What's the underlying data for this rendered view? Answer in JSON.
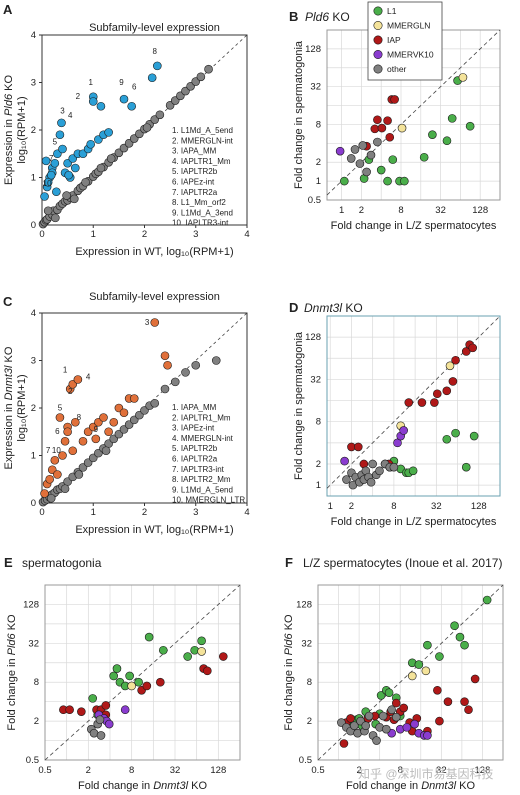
{
  "panels": {
    "A": {
      "label": "A",
      "title": "Subfamily-level expression",
      "ylabel": {
        "pre": "Expression in ",
        "ko": "Pld6",
        "post": " KO",
        "line2": "log₁₀(RPM+1)"
      },
      "xlabel": "Expression in WT,  log₁₀(RPM+1)",
      "ticks": [
        "0",
        "1",
        "2",
        "3",
        "4"
      ],
      "legend": [
        "1. L1Md_A_5end",
        "2. MMERGLN-int",
        "3. IAPA_MM",
        "4. IAPLTR1_Mm",
        "5. IAPLTR2b",
        "6. IAPEz-int",
        "7. IAPLTR2a",
        "8. L1_Mm_orf2",
        "9. L1Md_A_3end",
        "10. IAPLTR3-int"
      ]
    },
    "B": {
      "label": "B",
      "title_ko": "Pld6",
      "title_post": " KO",
      "xlabel": "Fold change in L/Z spermatocytes",
      "ylabel": "Fold change in spermatogonia",
      "xticks": [
        "1",
        "2",
        "8",
        "32",
        "128"
      ],
      "yticks": [
        "0.5",
        "1",
        "2",
        "8",
        "32",
        "128"
      ]
    },
    "C": {
      "label": "C",
      "title": "Subfamily-level expression",
      "ylabel": {
        "pre": "Expression in ",
        "ko": "Dnmt3l",
        "post": " KO",
        "line2": "log₁₀(RPM+1)"
      },
      "xlabel": "Expression in WT,  log₁₀(RPM+1)",
      "ticks": [
        "0",
        "1",
        "2",
        "3",
        "4"
      ],
      "legend": [
        "1. IAPA_MM",
        "2. IAPLTR1_Mm",
        "3. IAPEz-int",
        "4. MMERGLN-int",
        "5. IAPLTR2b",
        "6. IAPLTR2a",
        "7. IAPLTR3-int",
        "8. IAPLTR2_Mm",
        "9. L1Md_A_5end",
        "10. MMERGLN_LTR"
      ]
    },
    "D": {
      "label": "D",
      "title_ko": "Dnmt3l",
      "title_post": "  KO",
      "xlabel": "Fold change in L/Z spermatocytes",
      "ylabel": "Fold change in spermatogonia",
      "xticks": [
        "1",
        "2",
        "8",
        "32",
        "128"
      ],
      "yticks": [
        "1",
        "2",
        "8",
        "32",
        "128"
      ]
    },
    "E": {
      "label": "E",
      "title": "spermatogonia",
      "xlabel": {
        "pre": "Fold change in ",
        "ko": "Dnmt3l",
        "post": " KO"
      },
      "ylabel": {
        "pre": "Fold change in ",
        "ko": "Pld6",
        "post": " KO"
      },
      "xticks": [
        "0.5",
        "2",
        "8",
        "32",
        "128"
      ],
      "yticks": [
        "0.5",
        "2",
        "8",
        "32",
        "128"
      ]
    },
    "F": {
      "label": "F",
      "title": "L/Z spermatocytes (Inoue et al. 2017)",
      "xlabel": {
        "pre": "Fold change in ",
        "ko": "Dnmt3l",
        "post": " KO"
      },
      "ylabel": {
        "pre": "Fold change in ",
        "ko": "Pld6",
        "post": " KO"
      },
      "xticks": [
        "0.5",
        "2",
        "8",
        "32",
        "128"
      ],
      "yticks": [
        "0.5",
        "2",
        "8",
        "32",
        "128"
      ]
    }
  },
  "legend_groups": [
    {
      "name": "L1",
      "color": "#4aae4a"
    },
    {
      "name": "MMERGLN",
      "color": "#f4e39a"
    },
    {
      "name": "IAP",
      "color": "#b01818"
    },
    {
      "name": "MMERVK10",
      "color": "#8a3ccf"
    },
    {
      "name": "other",
      "color": "#808080"
    }
  ],
  "watermark": "知乎 @深圳市易基因科技",
  "chart_data": [
    {
      "panel": "A",
      "type": "scatter",
      "xlim": [
        0,
        4
      ],
      "ylim": [
        0,
        4
      ],
      "series": [
        {
          "color": "#2a9fd6",
          "x": [
            0.05,
            0.1,
            0.15,
            0.2,
            0.12,
            0.25,
            0.3,
            0.35,
            0.4,
            0.2,
            0.28,
            0.5,
            0.45,
            0.6,
            0.7,
            0.55,
            0.65,
            0.8,
            0.9,
            1.0,
            0.95,
            1.1,
            1.2,
            1.3,
            1.15,
            1.6,
            1.75,
            2.15,
            2.25,
            0.08,
            0.18,
            0.38,
            0.52,
            1.0
          ],
          "y": [
            0.6,
            0.8,
            1.0,
            1.2,
            0.9,
            1.3,
            1.5,
            1.9,
            1.6,
            1.1,
            0.7,
            1.3,
            1.1,
            1.4,
            1.5,
            1.0,
            1.2,
            1.5,
            1.6,
            2.7,
            1.7,
            1.8,
            1.9,
            1.95,
            2.5,
            2.65,
            2.5,
            3.1,
            3.35,
            1.35,
            1.05,
            2.15,
            1.05,
            2.6
          ]
        },
        {
          "color": "#808080",
          "x": [
            0.02,
            0.05,
            0.08,
            0.1,
            0.15,
            0.2,
            0.22,
            0.3,
            0.35,
            0.4,
            0.45,
            0.5,
            0.55,
            0.6,
            0.7,
            0.75,
            0.8,
            0.9,
            1.0,
            1.05,
            1.1,
            1.2,
            1.3,
            1.4,
            1.5,
            1.6,
            1.7,
            1.8,
            1.9,
            2.0,
            2.1,
            2.2,
            2.3,
            2.5,
            2.6,
            2.7,
            2.8,
            2.9,
            3.0,
            3.1,
            3.25,
            0.12,
            0.26,
            0.48,
            0.63,
            0.85,
            1.15,
            1.35,
            2.05
          ],
          "y": [
            0.02,
            0.06,
            0.1,
            0.12,
            0.18,
            0.22,
            0.3,
            0.32,
            0.4,
            0.45,
            0.5,
            0.52,
            0.58,
            0.62,
            0.72,
            0.78,
            0.82,
            0.92,
            1.02,
            1.08,
            1.12,
            1.22,
            1.32,
            1.42,
            1.52,
            1.62,
            1.72,
            1.82,
            1.92,
            2.02,
            2.12,
            2.22,
            2.32,
            2.52,
            2.62,
            2.72,
            2.82,
            2.92,
            3.02,
            3.12,
            3.28,
            0.3,
            0.15,
            0.62,
            0.55,
            0.9,
            1.2,
            1.4,
            2.05
          ]
        }
      ]
    },
    {
      "panel": "B",
      "type": "scatter",
      "scale": "log2",
      "xlim": [
        0.6,
        256
      ],
      "ylim": [
        0.5,
        256
      ],
      "series": [
        {
          "name": "L1",
          "color": "#4aae4a",
          "x": [
            1.1,
            2.2,
            2.6,
            4,
            5,
            6,
            7.6,
            9,
            18,
            24,
            40,
            48,
            58,
            90
          ],
          "y": [
            1,
            1.1,
            2.2,
            1.5,
            1,
            2.2,
            1,
            1,
            2.4,
            5.5,
            4.4,
            10,
            40,
            7.5
          ]
        },
        {
          "name": "MMERGLN",
          "color": "#f4e39a",
          "x": [
            8.3,
            70
          ],
          "y": [
            7,
            45
          ]
        },
        {
          "name": "IAP",
          "color": "#b01818",
          "x": [
            2.4,
            3.2,
            3.5,
            4.1,
            5,
            5.4,
            5.8,
            6.4
          ],
          "y": [
            3.6,
            6.8,
            9.5,
            7,
            9.2,
            5,
            20,
            20
          ]
        },
        {
          "name": "MMERVK10",
          "color": "#8a3ccf",
          "x": [
            0.95
          ],
          "y": [
            3
          ]
        },
        {
          "name": "other",
          "color": "#808080",
          "x": [
            1.4,
            1.6,
            1.9,
            2.1,
            2.4,
            2.8,
            3.5
          ],
          "y": [
            2.3,
            3.2,
            1.9,
            3.7,
            1.4,
            2.6,
            4.2
          ]
        }
      ]
    },
    {
      "panel": "C",
      "type": "scatter",
      "xlim": [
        0,
        4
      ],
      "ylim": [
        0,
        4
      ],
      "series": [
        {
          "color": "#e0703a",
          "x": [
            0.05,
            0.1,
            0.15,
            0.2,
            0.25,
            0.3,
            0.4,
            0.45,
            0.5,
            0.55,
            0.6,
            0.65,
            0.7,
            0.8,
            0.9,
            1.0,
            1.1,
            1.2,
            1.3,
            1.4,
            1.5,
            1.6,
            1.7,
            1.8,
            2.2,
            2.4,
            2.45,
            0.35,
            0.5,
            0.6,
            1.05
          ],
          "y": [
            0.2,
            0.4,
            0.5,
            0.7,
            0.9,
            0.6,
            1.0,
            1.3,
            1.6,
            2.4,
            2.5,
            1.7,
            2.6,
            1.3,
            1.5,
            1.6,
            1.7,
            1.8,
            1.5,
            1.7,
            2.0,
            1.9,
            2.2,
            2.2,
            3.8,
            3.1,
            2.9,
            1.8,
            1.5,
            1.1,
            1.35
          ]
        },
        {
          "color": "#808080",
          "x": [
            0.02,
            0.06,
            0.1,
            0.15,
            0.2,
            0.25,
            0.3,
            0.35,
            0.4,
            0.5,
            0.6,
            0.7,
            0.8,
            0.9,
            1.0,
            1.1,
            1.2,
            1.3,
            1.4,
            1.5,
            1.6,
            1.7,
            1.8,
            1.9,
            2.0,
            2.1,
            2.2,
            2.4,
            2.6,
            2.8,
            3.0,
            3.4,
            0.18,
            0.45,
            0.72,
            1.25
          ],
          "y": [
            0.02,
            0.05,
            0.08,
            0.12,
            0.18,
            0.22,
            0.28,
            0.3,
            0.35,
            0.45,
            0.55,
            0.65,
            0.75,
            0.85,
            0.95,
            1.05,
            1.15,
            1.25,
            1.35,
            1.45,
            1.55,
            1.65,
            1.75,
            1.85,
            1.95,
            2.05,
            2.1,
            2.4,
            2.55,
            2.75,
            2.9,
            3.0,
            0.1,
            0.3,
            0.6,
            1.1
          ]
        }
      ]
    },
    {
      "panel": "D",
      "type": "scatter",
      "scale": "log2",
      "xlim": [
        0.9,
        256
      ],
      "ylim": [
        0.7,
        256
      ],
      "series": [
        {
          "name": "L1",
          "color": "#4aae4a",
          "x": [
            7,
            8,
            10,
            12,
            13,
            15,
            45,
            60,
            85,
            110
          ],
          "y": [
            1.8,
            2.2,
            1.7,
            1.5,
            1.5,
            1.6,
            4.5,
            5.5,
            1.8,
            5
          ]
        },
        {
          "name": "MMERGLN",
          "color": "#f4e39a",
          "x": [
            10,
            50
          ],
          "y": [
            7,
            50
          ]
        },
        {
          "name": "IAP",
          "color": "#b01818",
          "x": [
            2,
            2.5,
            3,
            6,
            6.8,
            13,
            20,
            30,
            33,
            45,
            55,
            60,
            85,
            95,
            105
          ],
          "y": [
            3.5,
            3.5,
            2,
            2,
            2,
            15,
            15,
            15,
            20,
            22,
            30,
            60,
            80,
            100,
            90
          ]
        },
        {
          "name": "MMERVK10",
          "color": "#8a3ccf",
          "x": [
            1.6,
            9,
            10,
            11
          ],
          "y": [
            2.2,
            4,
            5,
            6
          ]
        },
        {
          "name": "other",
          "color": "#808080",
          "x": [
            1.7,
            2,
            2.1,
            2.3,
            2.6,
            2.8,
            3,
            3.2,
            3.5,
            3.8,
            4,
            4.5,
            5,
            6,
            7,
            8
          ],
          "y": [
            1.2,
            1.5,
            1,
            1.3,
            1.1,
            1.4,
            1.2,
            1.6,
            1.3,
            1.1,
            2,
            1.4,
            1.6,
            2,
            1.8,
            1.8
          ]
        }
      ]
    },
    {
      "panel": "E",
      "type": "scatter",
      "scale": "log2",
      "xlim": [
        0.5,
        256
      ],
      "ylim": [
        0.5,
        256
      ],
      "series": [
        {
          "name": "L1",
          "color": "#4aae4a",
          "x": [
            2.3,
            2.7,
            4.5,
            5,
            5.5,
            6.5,
            7.5,
            10,
            14,
            22,
            48,
            60,
            75
          ],
          "y": [
            4.5,
            2.5,
            10,
            13,
            8,
            7,
            10,
            8,
            40,
            25,
            20,
            25,
            35
          ]
        },
        {
          "name": "MMERGLN",
          "color": "#f4e39a",
          "x": [
            8,
            75
          ],
          "y": [
            7,
            24
          ]
        },
        {
          "name": "IAP",
          "color": "#b01818",
          "x": [
            0.9,
            1.1,
            1.6,
            2.6,
            3,
            3.5,
            3.5,
            11,
            13,
            20,
            80,
            90,
            150
          ],
          "y": [
            3,
            3,
            2.8,
            3,
            3,
            3.5,
            2.5,
            6,
            7,
            8,
            13,
            12,
            20
          ]
        },
        {
          "name": "MMERVK10",
          "color": "#8a3ccf",
          "x": [
            2.8,
            3.3,
            3.6,
            3.9,
            6.5
          ],
          "y": [
            2.5,
            2.2,
            2,
            1.8,
            3
          ]
        },
        {
          "name": "other",
          "color": "#808080",
          "x": [
            2.2,
            2.4,
            2.7,
            3,
            2.9
          ],
          "y": [
            1.5,
            1.3,
            1.8,
            1.2,
            2.1
          ]
        }
      ]
    },
    {
      "panel": "F",
      "type": "scatter",
      "scale": "log2",
      "xlim": [
        0.5,
        256
      ],
      "ylim": [
        0.5,
        256
      ],
      "series": [
        {
          "name": "L1",
          "color": "#4aae4a",
          "x": [
            1.5,
            1.8,
            2,
            2.2,
            2.5,
            3.5,
            4,
            4.2,
            5,
            5.5,
            7,
            8,
            12,
            15,
            20,
            30,
            50,
            60,
            70,
            150
          ],
          "y": [
            1.9,
            2.1,
            2.2,
            1.7,
            2.8,
            1.8,
            2.6,
            5,
            6,
            5.5,
            4.6,
            2.4,
            16,
            15,
            30,
            20,
            60,
            40,
            30,
            150
          ]
        },
        {
          "name": "MMERGLN",
          "color": "#f4e39a",
          "x": [
            12,
            19
          ],
          "y": [
            10,
            12
          ]
        },
        {
          "name": "IAP",
          "color": "#b01818",
          "x": [
            1.2,
            1.3,
            1.5,
            2.7,
            3.4,
            5,
            5.8,
            6.5,
            7,
            8,
            9,
            11,
            12,
            14,
            20,
            28,
            30,
            40,
            70,
            80,
            100
          ],
          "y": [
            0.9,
            1.9,
            2.2,
            2.2,
            2.4,
            2.3,
            2.8,
            2.1,
            3.8,
            2.8,
            3.2,
            1.9,
            1.4,
            2.2,
            1.4,
            6,
            2,
            4,
            4,
            3,
            9
          ]
        },
        {
          "name": "MMERVK10",
          "color": "#8a3ccf",
          "x": [
            6,
            8,
            10,
            13,
            15,
            18,
            20
          ],
          "y": [
            1.3,
            1.5,
            1.6,
            1.8,
            1.3,
            1.2,
            1.2
          ]
        },
        {
          "name": "other",
          "color": "#808080",
          "x": [
            1.1,
            1.3,
            1.5,
            1.7,
            1.9,
            2.1,
            2.4,
            2.5,
            2.8,
            3.2,
            3.6,
            4,
            4.5,
            5,
            6,
            7
          ],
          "y": [
            1.9,
            1.6,
            1.4,
            1.7,
            1.3,
            2,
            1.4,
            1.7,
            2.4,
            1.2,
            1,
            1.6,
            2.4,
            1.5,
            3,
            2.3
          ]
        }
      ]
    }
  ]
}
